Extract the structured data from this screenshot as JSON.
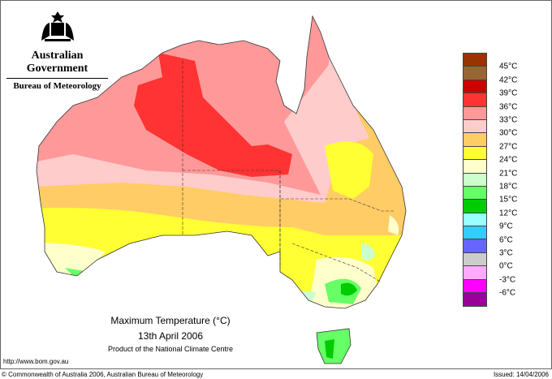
{
  "header": {
    "government": "Australian Government",
    "bureau": "Bureau of Meteorology"
  },
  "map": {
    "title": "Maximum Temperature (°C)",
    "date": "13th April 2006",
    "product": "Product of the National Climate Centre"
  },
  "legend": {
    "colors": [
      "#993300",
      "#996633",
      "#cc0000",
      "#ff3333",
      "#ff9999",
      "#ffcccc",
      "#ffcc66",
      "#ffff33",
      "#ffffcc",
      "#ccffcc",
      "#66ff66",
      "#00cc00",
      "#99ffff",
      "#33ccff",
      "#6666ff",
      "#cccccc",
      "#ffaaff",
      "#ff00ff",
      "#990099"
    ],
    "labels": [
      "45°C",
      "42°C",
      "39°C",
      "36°C",
      "33°C",
      "30°C",
      "27°C",
      "24°C",
      "21°C",
      "18°C",
      "15°C",
      "12°C",
      "9°C",
      "6°C",
      "3°C",
      "0°C",
      "-3°C",
      "-6°C"
    ]
  },
  "footer": {
    "url": "http://www.bom.gov.au",
    "copyright": "© Commonwealth of Australia 2006, Australian Bureau of Meteorology",
    "issued": "Issued: 14/04/2006"
  }
}
